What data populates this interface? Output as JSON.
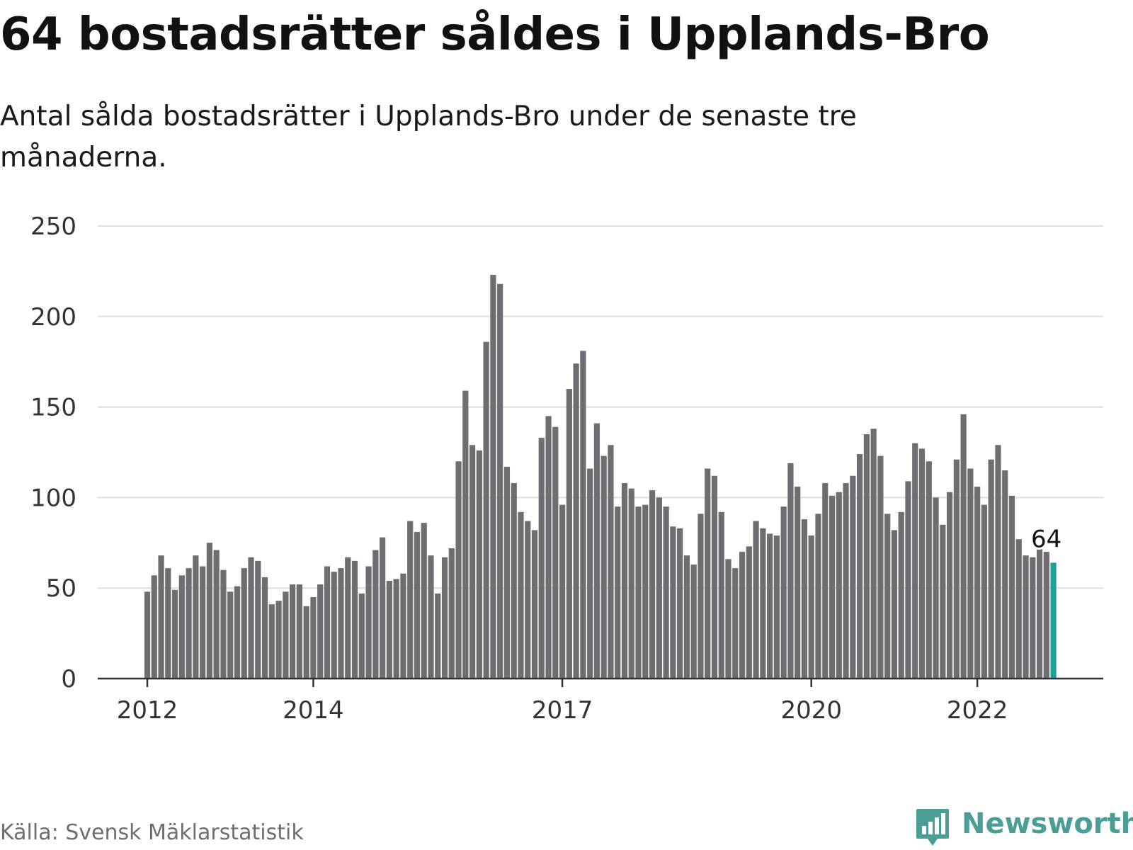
{
  "title": "64 bostadsrätter såldes i Upplands-Bro",
  "subtitle": "Antal sålda bostadsrätter i Upplands-Bro under de senaste tre månaderna.",
  "source": "Källa: Svensk Mäklarstatistik",
  "brand": {
    "name": "Newsworthy",
    "color": "#4a9e95",
    "icon": "newsworthy-logo-icon"
  },
  "colors": {
    "bar": "#6d6d72",
    "highlight": "#1aa396",
    "grid": "#dddddd",
    "axis": "#333333"
  },
  "chart_data": {
    "type": "bar",
    "ylim": [
      0,
      250
    ],
    "yticks": [
      0,
      50,
      100,
      150,
      200,
      250
    ],
    "grid": true,
    "x_start": "2012-01",
    "x_ticks": [
      {
        "label": "2012",
        "index": 0
      },
      {
        "label": "2014",
        "index": 24
      },
      {
        "label": "2017",
        "index": 60
      },
      {
        "label": "2020",
        "index": 96
      },
      {
        "label": "2022",
        "index": 120
      }
    ],
    "values": [
      48,
      57,
      68,
      61,
      49,
      57,
      61,
      68,
      62,
      75,
      71,
      60,
      48,
      51,
      61,
      67,
      65,
      56,
      41,
      43,
      48,
      52,
      52,
      40,
      45,
      52,
      62,
      59,
      61,
      67,
      65,
      47,
      62,
      71,
      78,
      54,
      55,
      58,
      87,
      81,
      86,
      68,
      47,
      67,
      72,
      120,
      159,
      129,
      126,
      186,
      223,
      218,
      117,
      108,
      92,
      87,
      82,
      133,
      145,
      139,
      96,
      160,
      174,
      181,
      116,
      141,
      123,
      129,
      95,
      108,
      105,
      95,
      96,
      104,
      100,
      95,
      84,
      83,
      68,
      63,
      91,
      116,
      112,
      92,
      66,
      61,
      70,
      73,
      87,
      83,
      80,
      79,
      95,
      119,
      106,
      88,
      79,
      91,
      108,
      101,
      103,
      108,
      112,
      124,
      135,
      138,
      123,
      91,
      82,
      92,
      109,
      130,
      127,
      120,
      100,
      85,
      103,
      121,
      146,
      116,
      106,
      96,
      121,
      129,
      115,
      101,
      77,
      68,
      67,
      72,
      70,
      64
    ],
    "highlight_label": "64"
  }
}
